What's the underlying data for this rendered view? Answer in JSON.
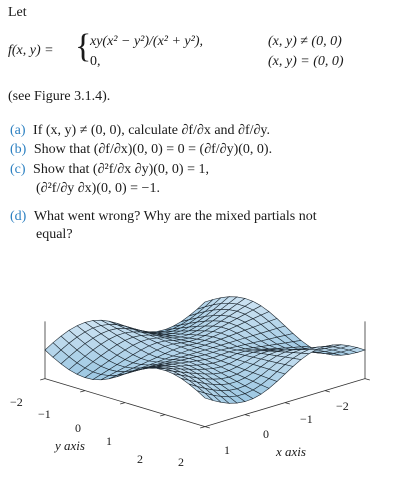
{
  "intro": "Let",
  "function": {
    "lhs": "f(x, y) =",
    "case1_expr": "xy(x² − y²)/(x² + y²),",
    "case1_cond": "(x, y) ≠ (0, 0)",
    "case2_expr": "0,",
    "case2_cond": "(x, y) = (0, 0)"
  },
  "see_figure": "(see Figure 3.1.4).",
  "parts": [
    {
      "label": "(a)",
      "line1": "If (x, y) ≠ (0, 0), calculate ∂f/∂x and ∂f/∂y.",
      "line2": ""
    },
    {
      "label": "(b)",
      "line1": "Show that (∂f/∂x)(0, 0) = 0 = (∂f/∂y)(0, 0).",
      "line2": ""
    },
    {
      "label": "(c)",
      "line1": "Show that (∂²f/∂x ∂y)(0, 0) = 1,",
      "line2": "(∂²f/∂y ∂x)(0, 0) = −1."
    },
    {
      "label": "(d)",
      "line1": "What went wrong? Why are the mixed partials not",
      "line2": "equal?"
    }
  ],
  "figure": {
    "y_axis_label": "y axis",
    "x_axis_label": "x axis",
    "y_ticks": [
      "−2",
      "−1",
      "0",
      "1",
      "2"
    ],
    "x_ticks": [
      "2",
      "1",
      "0",
      "−1",
      "−2"
    ],
    "surface_color": "#9fd0ea",
    "mesh_color": "#1f2a33"
  }
}
